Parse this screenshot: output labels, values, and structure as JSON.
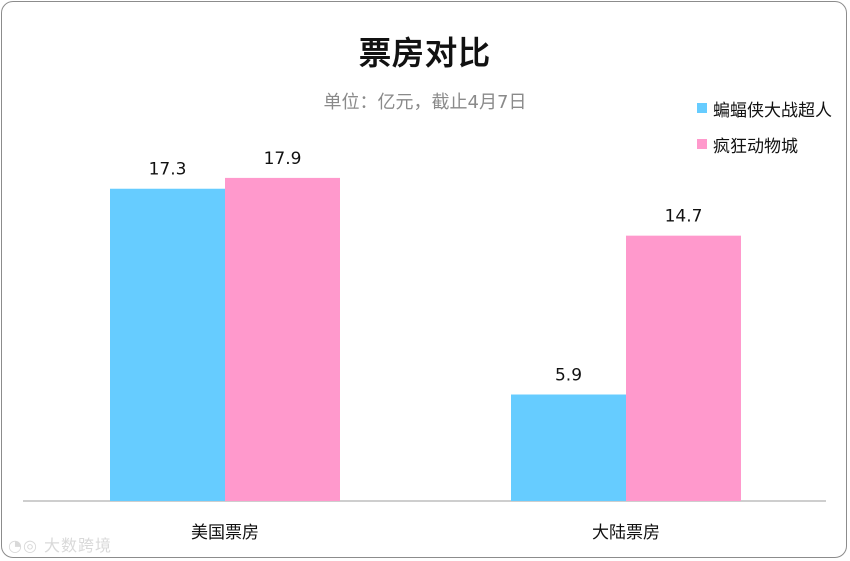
{
  "chart_data": {
    "type": "bar",
    "title": "票房对比",
    "subtitle": "单位：亿元，截止4月7日",
    "categories": [
      "美国票房",
      "大陆票房"
    ],
    "series": [
      {
        "name": "蝙蝠侠大战超人",
        "values": [
          17.3,
          5.9
        ],
        "color": "#66ccff"
      },
      {
        "name": "疯狂动物城",
        "values": [
          17.9,
          14.7
        ],
        "color": "#ff99cc"
      }
    ],
    "ylim": [
      0,
      20
    ],
    "grid": false,
    "legend_position": "top-right",
    "xlabel": "",
    "ylabel": ""
  },
  "watermark": {
    "text": "大数跨境",
    "icon": "logo-icon"
  }
}
